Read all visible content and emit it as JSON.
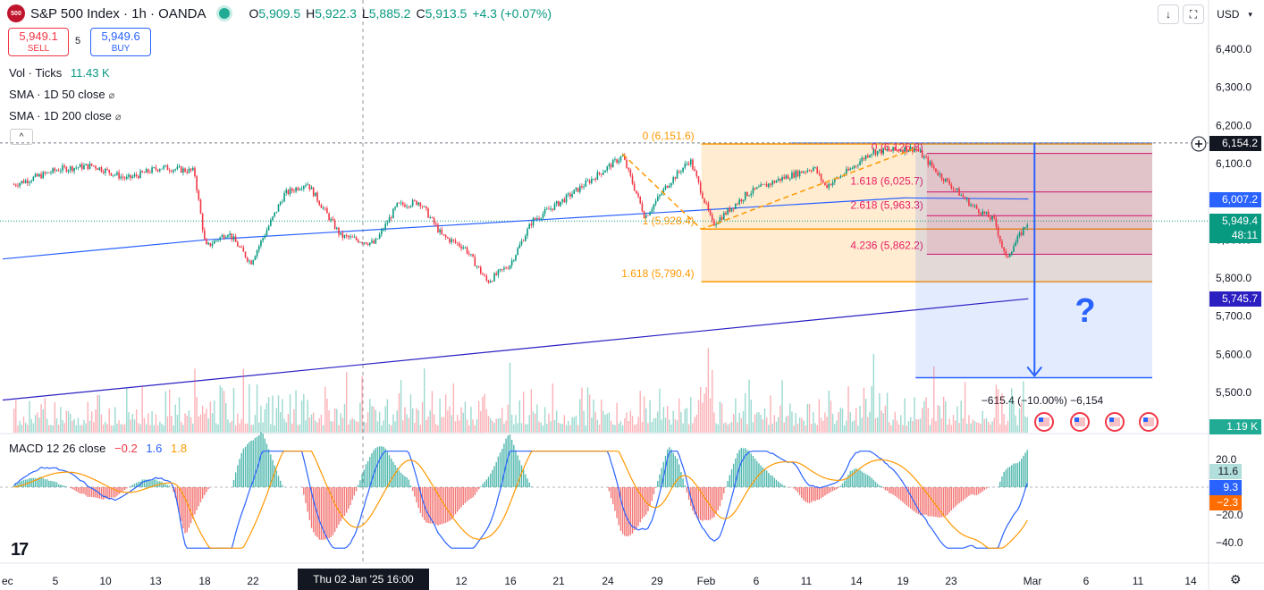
{
  "header": {
    "logo_text": "500",
    "title": "S&P 500 Index · 1h · OANDA",
    "ohlc": [
      {
        "k": "O",
        "v": "5,909.5"
      },
      {
        "k": "H",
        "v": "5,922.3"
      },
      {
        "k": "L",
        "v": "5,885.2"
      },
      {
        "k": "C",
        "v": "5,913.5"
      }
    ],
    "change": "+4.3 (+0.07%)"
  },
  "trade": {
    "sell_price": "5,949.1",
    "sell_label": "SELL",
    "spread": "5",
    "buy_price": "5,949.6",
    "buy_label": "BUY"
  },
  "toolbar": {
    "down_arrow": "↓",
    "fullscreen": "⛶",
    "currency": "USD",
    "currency_caret": "▾"
  },
  "legends": {
    "vol": "Vol · Ticks",
    "vol_value": "11.43 K",
    "sma50": "SMA · 1D 50 close",
    "sma200": "SMA · 1D 200 close",
    "collapse": "^",
    "macd_title": "MACD 12 26 close",
    "macd_v1": "−0.2",
    "macd_v2": "1.6",
    "macd_v3": "1.8"
  },
  "price_axis": {
    "ticks": [
      "6,400.0",
      "6,300.0",
      "6,200.0",
      "6,100.0",
      "6,000.0",
      "5,900.0",
      "5,800.0",
      "5,700.0",
      "5,600.0",
      "5,500.0"
    ],
    "labels": [
      {
        "text": "6,154.2",
        "bg": "#131722"
      },
      {
        "text": "6,007.2",
        "bg": "#2962ff"
      },
      {
        "text": "5,949.4",
        "bg": "#089981"
      },
      {
        "text": "48:11",
        "bg": "#089981"
      },
      {
        "text": "5,745.7",
        "bg": "#2b1fc2"
      },
      {
        "text": "1.19 K",
        "bg": "#22ab94"
      }
    ]
  },
  "macd_axis": {
    "ticks": [
      "20.0",
      "−20.0",
      "−40.0"
    ],
    "labels": [
      {
        "text": "11.6",
        "bg": "#b2dfdb",
        "fg": "#131722"
      },
      {
        "text": "9.3",
        "bg": "#2962ff",
        "fg": "#ffffff"
      },
      {
        "text": "−2.3",
        "bg": "#ff6d00",
        "fg": "#ffffff"
      }
    ]
  },
  "time_axis": {
    "ticks": [
      "ec",
      "5",
      "10",
      "13",
      "18",
      "22",
      "12",
      "16",
      "21",
      "24",
      "29",
      "Feb",
      "6",
      "11",
      "14",
      "19",
      "23",
      "Mar",
      "6",
      "11",
      "14"
    ],
    "crosshair": "Thu 02 Jan '25   16:00",
    "settings_icon": "gear-icon"
  },
  "chart_data": {
    "type": "candlestick",
    "symbol": "S&P 500 Index",
    "interval": "1h",
    "y_range": [
      5480,
      6420
    ],
    "x_range": [
      "2024-11-30",
      "2025-03-17"
    ],
    "approx_close_path": [
      {
        "date": "2024-12-01",
        "close": 6045
      },
      {
        "date": "2024-12-05",
        "close": 6085
      },
      {
        "date": "2024-12-08",
        "close": 6095
      },
      {
        "date": "2024-12-11",
        "close": 6060
      },
      {
        "date": "2024-12-14",
        "close": 6090
      },
      {
        "date": "2024-12-17",
        "close": 6080
      },
      {
        "date": "2024-12-18",
        "close": 5880
      },
      {
        "date": "2024-12-20",
        "close": 5920
      },
      {
        "date": "2024-12-22",
        "close": 5840
      },
      {
        "date": "2024-12-25",
        "close": 6020
      },
      {
        "date": "2024-12-27",
        "close": 6050
      },
      {
        "date": "2024-12-30",
        "close": 5910
      },
      {
        "date": "2025-01-02",
        "close": 5890
      },
      {
        "date": "2025-01-04",
        "close": 5990
      },
      {
        "date": "2025-01-06",
        "close": 6000
      },
      {
        "date": "2025-01-08",
        "close": 5910
      },
      {
        "date": "2025-01-10",
        "close": 5880
      },
      {
        "date": "2025-01-12",
        "close": 5790
      },
      {
        "date": "2025-01-14",
        "close": 5835
      },
      {
        "date": "2025-01-16",
        "close": 5950
      },
      {
        "date": "2025-01-19",
        "close": 6010
      },
      {
        "date": "2025-01-22",
        "close": 6075
      },
      {
        "date": "2025-01-24",
        "close": 6120
      },
      {
        "date": "2025-01-26",
        "close": 5960
      },
      {
        "date": "2025-01-28",
        "close": 6045
      },
      {
        "date": "2025-01-30",
        "close": 6110
      },
      {
        "date": "2025-02-01",
        "close": 5940
      },
      {
        "date": "2025-02-04",
        "close": 6020
      },
      {
        "date": "2025-02-07",
        "close": 6060
      },
      {
        "date": "2025-02-10",
        "close": 6090
      },
      {
        "date": "2025-02-11",
        "close": 6040
      },
      {
        "date": "2025-02-13",
        "close": 6080
      },
      {
        "date": "2025-02-15",
        "close": 6130
      },
      {
        "date": "2025-02-19",
        "close": 6140
      },
      {
        "date": "2025-02-21",
        "close": 6075
      },
      {
        "date": "2025-02-24",
        "close": 5990
      },
      {
        "date": "2025-02-26",
        "close": 5950
      },
      {
        "date": "2025-02-27",
        "close": 5850
      },
      {
        "date": "2025-03-01",
        "close": 5949.4
      }
    ],
    "sma50": [
      {
        "date": "2024-11-30",
        "value": 5850
      },
      {
        "date": "2024-12-18",
        "value": 5900
      },
      {
        "date": "2025-02-18",
        "value": 6010
      },
      {
        "date": "2025-03-01",
        "value": 6007.2
      }
    ],
    "sma200": [
      {
        "date": "2024-11-30",
        "value": 5480
      },
      {
        "date": "2025-03-01",
        "value": 5745.7
      }
    ],
    "fib_ext_1": {
      "levels": [
        {
          "label": "0 (6,151.6)",
          "value": 6151.6
        },
        {
          "label": "1 (5,928.4)",
          "value": 5928.4
        },
        {
          "label": "1.618 (5,790.4)",
          "value": 5790.4
        }
      ],
      "color": "#ff9800"
    },
    "fib_ext_2": {
      "levels": [
        {
          "label": "0 (6,126.8)",
          "value": 6126.8
        },
        {
          "label": "1.618 (6,025.7)",
          "value": 6025.7
        },
        {
          "label": "2.618 (5,963.3)",
          "value": 5963.3
        },
        {
          "label": "4.236 (5,862.2)",
          "value": 5862.2
        }
      ],
      "color": "#e91e63"
    },
    "projection": {
      "from": 6154.2,
      "to": 5538.8,
      "label": "−615.4 (−10.00%) −6,154",
      "marker": "?"
    },
    "macd": {
      "y_range": [
        -48,
        28
      ],
      "fast": 12,
      "slow": 26,
      "source": "close"
    }
  }
}
